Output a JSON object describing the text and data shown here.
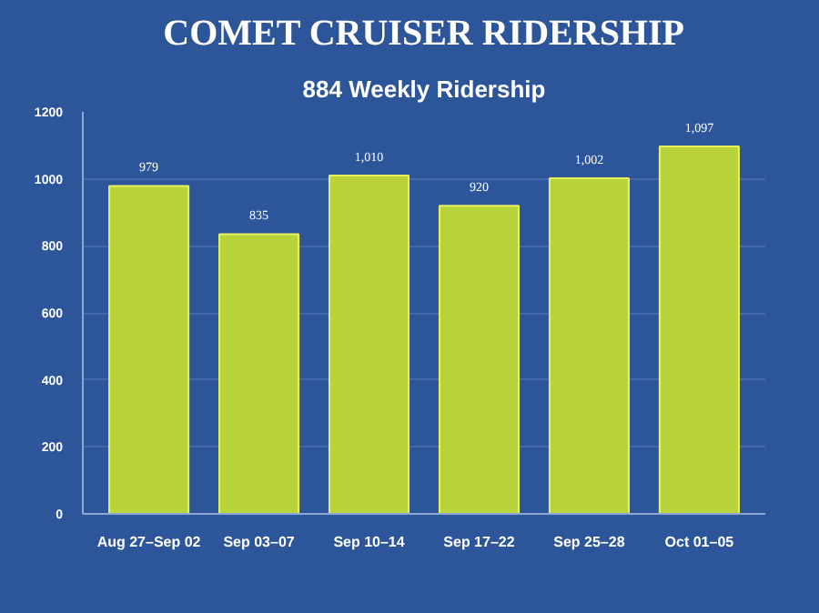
{
  "chart_data": {
    "type": "bar",
    "title": "COMET CRUISER RIDERSHIP",
    "subtitle": "884 Weekly Ridership",
    "categories": [
      "Aug 27–Sep 02",
      "Sep 03–07",
      "Sep 10–14",
      "Sep 17–22",
      "Sep 25–28",
      "Oct 01–05"
    ],
    "values": [
      979,
      835,
      1010,
      920,
      1002,
      1097
    ],
    "value_labels": [
      "979",
      "835",
      "1,010",
      "920",
      "1,002",
      "1,097"
    ],
    "color": "#b9d43a",
    "ylim": [
      0,
      1200
    ],
    "yticks": [
      0,
      200,
      400,
      600,
      800,
      1000,
      1200
    ],
    "grid": "y"
  }
}
